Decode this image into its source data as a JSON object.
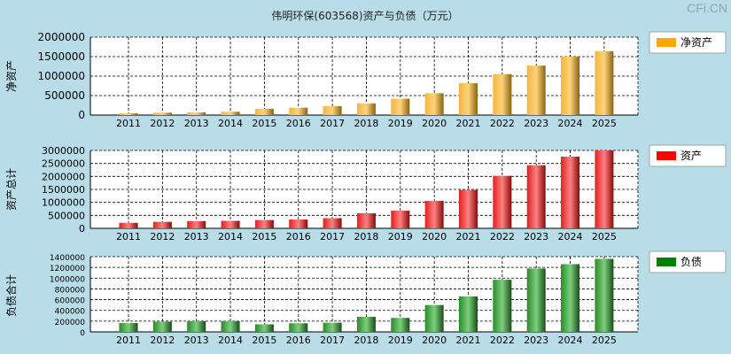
{
  "title": "伟明环保(603568)资产与负债（万元）",
  "watermark": "CFi.CN",
  "chart_data": [
    {
      "type": "bar",
      "ylabel": "净资产",
      "legend": "净资产",
      "legend_color": "#ffa500",
      "categories": [
        "2011",
        "2012",
        "2013",
        "2014",
        "2015",
        "2016",
        "2017",
        "2018",
        "2019",
        "2020",
        "2021",
        "2022",
        "2023",
        "2024",
        "2025"
      ],
      "values": [
        45000,
        60000,
        70000,
        85000,
        160000,
        190000,
        230000,
        300000,
        420000,
        560000,
        820000,
        1050000,
        1270000,
        1500000,
        1640000
      ],
      "ylim": [
        0,
        2000000
      ],
      "yticks": [
        "0",
        "500000",
        "1000000",
        "1500000",
        "2000000"
      ],
      "grid": true,
      "legend_position": "right"
    },
    {
      "type": "bar",
      "ylabel": "资产总计",
      "legend": "资产",
      "legend_color": "#ff0000",
      "categories": [
        "2011",
        "2012",
        "2013",
        "2014",
        "2015",
        "2016",
        "2017",
        "2018",
        "2019",
        "2020",
        "2021",
        "2022",
        "2023",
        "2024",
        "2025"
      ],
      "values": [
        210000,
        250000,
        280000,
        290000,
        320000,
        340000,
        390000,
        580000,
        680000,
        1060000,
        1480000,
        2020000,
        2430000,
        2760000,
        3000000
      ],
      "ylim": [
        0,
        3000000
      ],
      "yticks": [
        "0",
        "500000",
        "1000000",
        "1500000",
        "2000000",
        "2500000",
        "3000000"
      ],
      "grid": true,
      "legend_position": "right"
    },
    {
      "type": "bar",
      "ylabel": "负债合计",
      "legend": "负债",
      "legend_color": "#008000",
      "categories": [
        "2011",
        "2012",
        "2013",
        "2014",
        "2015",
        "2016",
        "2017",
        "2018",
        "2019",
        "2020",
        "2021",
        "2022",
        "2023",
        "2024",
        "2025"
      ],
      "values": [
        165000,
        190000,
        200000,
        200000,
        140000,
        160000,
        170000,
        280000,
        260000,
        500000,
        660000,
        970000,
        1180000,
        1260000,
        1360000
      ],
      "ylim": [
        0,
        1400000
      ],
      "yticks": [
        "0",
        "200000",
        "400000",
        "600000",
        "800000",
        "1000000",
        "1200000",
        "1400000"
      ],
      "grid": true,
      "legend_position": "right"
    }
  ]
}
